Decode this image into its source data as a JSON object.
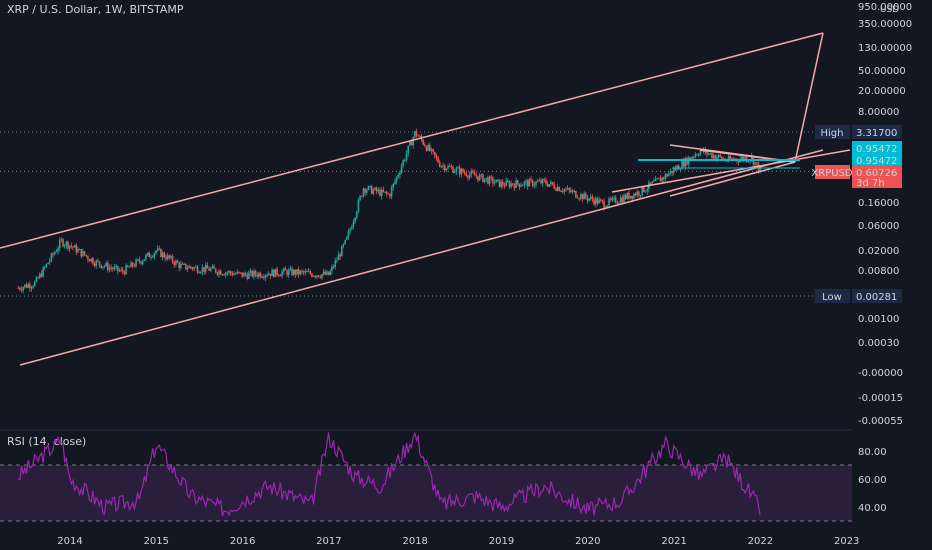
{
  "header": {
    "title": "XRP / U.S. Dollar, 1W, BITSTAMP"
  },
  "price_axis": {
    "currency": "USD"
  },
  "price_labels": {
    "high_label": "High",
    "high_value": "3.31700",
    "low_label": "Low",
    "low_value": "0.00281",
    "level1": "0.95472",
    "level2": "0.95472",
    "symbol": "XRPUSD",
    "last": "0.60726",
    "countdown": "3d 7h"
  },
  "colors": {
    "background": "#131722",
    "up": "#26a69a",
    "down": "#ef5350",
    "channel": "#f7a8a8",
    "level": "#00bcd4",
    "rsi": "#9c27b0",
    "rsi_band": "#2a1e3d",
    "high_tag": "#1e2a45"
  },
  "chart_data": [
    {
      "type": "candlestick",
      "title": "XRP / U.S. Dollar, 1W, BITSTAMP",
      "y_scale": "log",
      "y_ticks": [
        "950.00000",
        "350.00000",
        "130.00000",
        "50.00000",
        "20.00000",
        "8.00000",
        "0.16000",
        "0.06000",
        "0.02000",
        "0.00800",
        "0.00100",
        "0.00030",
        "-0.00000",
        "-0.00015",
        "-0.00055"
      ],
      "x_ticks": [
        "2014",
        "2015",
        "2016",
        "2017",
        "2018",
        "2019",
        "2020",
        "2021",
        "2022",
        "2023"
      ],
      "series_points": {
        "x": [
          2013.4,
          2013.6,
          2013.9,
          2014.0,
          2014.3,
          2014.6,
          2015.0,
          2015.3,
          2015.6,
          2016.0,
          2016.5,
          2017.0,
          2017.2,
          2017.4,
          2017.7,
          2018.0,
          2018.3,
          2018.7,
          2019.0,
          2019.5,
          2019.9,
          2020.2,
          2020.6,
          2020.9,
          2021.3,
          2021.6,
          2021.9,
          2022.0
        ],
        "close": [
          0.004,
          0.005,
          0.03,
          0.025,
          0.012,
          0.008,
          0.02,
          0.01,
          0.009,
          0.007,
          0.008,
          0.007,
          0.03,
          0.3,
          0.22,
          3.3,
          0.8,
          0.5,
          0.35,
          0.38,
          0.22,
          0.15,
          0.25,
          0.5,
          1.5,
          1.0,
          1.1,
          0.607
        ]
      },
      "levels": [
        0.95472,
        0.95472
      ],
      "high": 3.317,
      "low": 0.00281,
      "last": 0.60726
    },
    {
      "type": "line",
      "title": "RSI (14, close)",
      "y_ticks": [
        "80.00",
        "60.00",
        "40.00"
      ],
      "bands": [
        70,
        30
      ],
      "x": [
        2013.4,
        2013.9,
        2014.0,
        2014.4,
        2014.8,
        2015.0,
        2015.4,
        2015.8,
        2016.3,
        2016.8,
        2017.0,
        2017.3,
        2017.6,
        2018.0,
        2018.3,
        2018.7,
        2019.0,
        2019.5,
        2020.0,
        2020.4,
        2020.9,
        2021.3,
        2021.6,
        2021.9,
        2022.0
      ],
      "values": [
        62,
        88,
        60,
        40,
        45,
        85,
        48,
        38,
        55,
        42,
        90,
        62,
        55,
        92,
        42,
        48,
        40,
        55,
        38,
        45,
        85,
        62,
        75,
        48,
        38
      ]
    }
  ]
}
